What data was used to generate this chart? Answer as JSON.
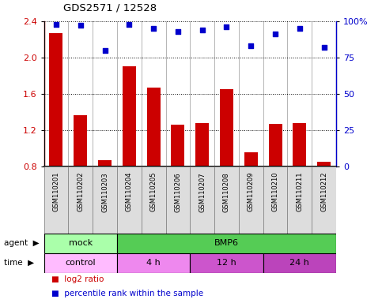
{
  "title": "GDS2571 / 12528",
  "samples": [
    "GSM110201",
    "GSM110202",
    "GSM110203",
    "GSM110204",
    "GSM110205",
    "GSM110206",
    "GSM110207",
    "GSM110208",
    "GSM110209",
    "GSM110210",
    "GSM110211",
    "GSM110212"
  ],
  "log2_ratio": [
    2.27,
    1.37,
    0.87,
    1.9,
    1.67,
    1.26,
    1.28,
    1.65,
    0.96,
    1.27,
    1.28,
    0.85
  ],
  "percentile": [
    98,
    97,
    80,
    98,
    95,
    93,
    94,
    96,
    83,
    91,
    95,
    82
  ],
  "bar_color": "#cc0000",
  "dot_color": "#0000cc",
  "ylim_left": [
    0.8,
    2.4
  ],
  "ylim_right": [
    0,
    100
  ],
  "yticks_left": [
    0.8,
    1.2,
    1.6,
    2.0,
    2.4
  ],
  "yticks_right": [
    0,
    25,
    50,
    75,
    100
  ],
  "agent_colors": [
    "#aaffaa",
    "#55cc55"
  ],
  "agent_labels_data": [
    {
      "label": "mock",
      "start": 0,
      "end": 3
    },
    {
      "label": "BMP6",
      "start": 3,
      "end": 12
    }
  ],
  "time_colors": [
    "#ffbbff",
    "#ee88ee",
    "#cc55cc",
    "#bb44bb"
  ],
  "time_labels_data": [
    {
      "label": "control",
      "start": 0,
      "end": 3
    },
    {
      "label": "4 h",
      "start": 3,
      "end": 6
    },
    {
      "label": "12 h",
      "start": 6,
      "end": 9
    },
    {
      "label": "24 h",
      "start": 9,
      "end": 12
    }
  ],
  "legend_red_label": "log2 ratio",
  "legend_blue_label": "percentile rank within the sample",
  "bar_width": 0.55,
  "background_color": "#ffffff",
  "tick_label_color_left": "#cc0000",
  "tick_label_color_right": "#0000cc",
  "sample_bg_color": "#dddddd",
  "sample_bg_color_alt": "#cccccc"
}
